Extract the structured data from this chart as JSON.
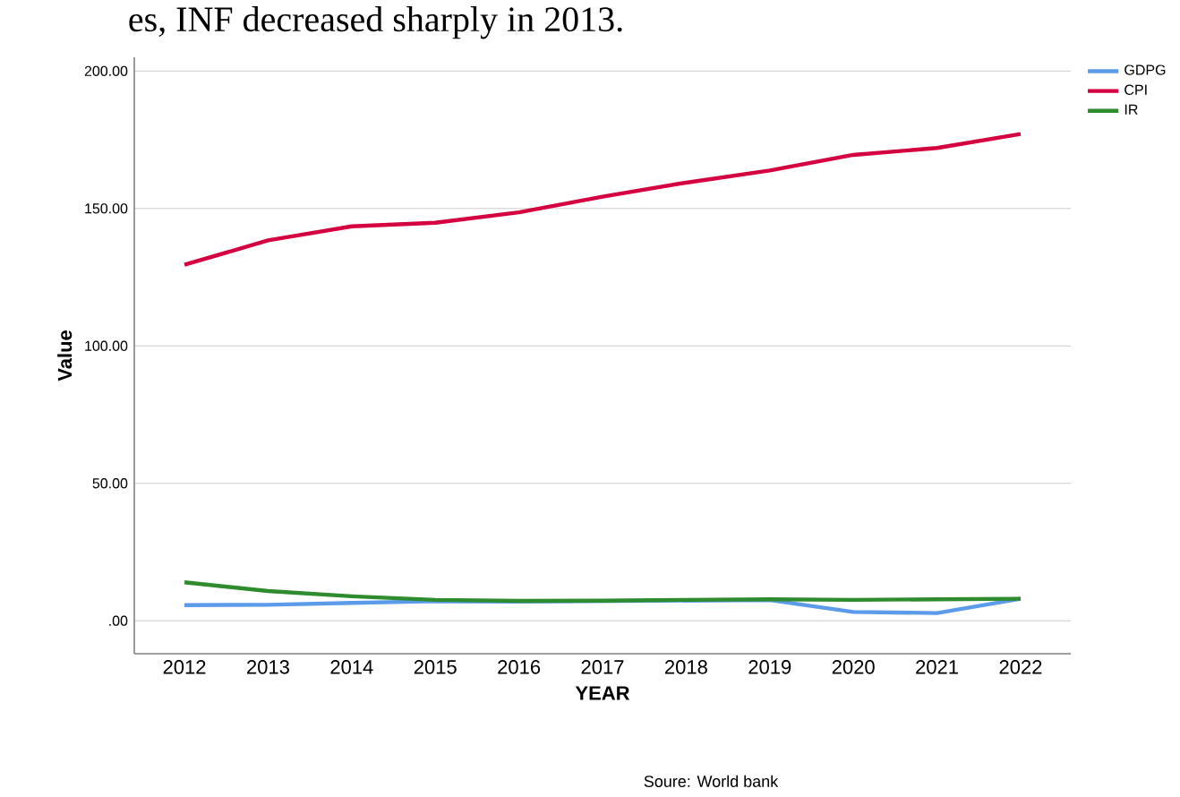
{
  "chart_data": {
    "type": "line",
    "xlabel": "YEAR",
    "ylabel": "Value",
    "categories": [
      "2012",
      "2013",
      "2014",
      "2015",
      "2016",
      "2017",
      "2018",
      "2019",
      "2020",
      "2021",
      "2022"
    ],
    "series": [
      {
        "name": "GDPG",
        "color": "#5b9bea",
        "values": [
          5.7,
          5.8,
          6.5,
          7.1,
          7.0,
          null,
          null,
          7.5,
          3.2,
          2.8,
          8.0
        ]
      },
      {
        "name": "CPI",
        "color": "#d5003f",
        "values": [
          129.5,
          138.4,
          143.5,
          144.8,
          148.6,
          154.3,
          159.4,
          163.8,
          169.5,
          172.0,
          177.1
        ]
      },
      {
        "name": "IR",
        "color": "#2e8b2e",
        "values": [
          14.0,
          10.8,
          8.9,
          7.6,
          7.2,
          7.3,
          7.6,
          7.8,
          7.6,
          7.8,
          8.0
        ]
      }
    ],
    "ylim": [
      -12,
      205
    ],
    "yticks": [
      {
        "value": 0,
        "label": ".00"
      },
      {
        "value": 50,
        "label": "50.00"
      },
      {
        "value": 100,
        "label": "100.00"
      },
      {
        "value": 150,
        "label": "150.00"
      },
      {
        "value": 200,
        "label": "200.00"
      }
    ],
    "grid": "y",
    "legend": "top right",
    "marker": "none",
    "line_style": "solid",
    "annotations": [
      "es, INF decreased sharply in 2013.",
      "Soure: World bank"
    ]
  }
}
